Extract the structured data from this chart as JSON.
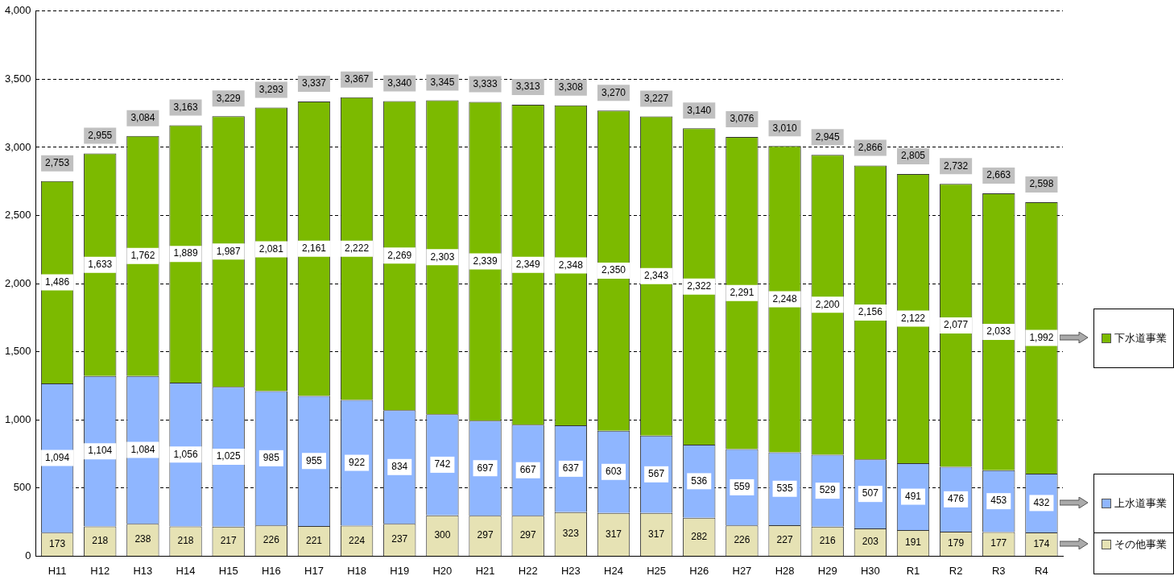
{
  "chart_data": {
    "type": "bar",
    "stacked": true,
    "categories": [
      "H11",
      "H12",
      "H13",
      "H14",
      "H15",
      "H16",
      "H17",
      "H18",
      "H19",
      "H20",
      "H21",
      "H22",
      "H23",
      "H24",
      "H25",
      "H26",
      "H27",
      "H28",
      "H29",
      "H30",
      "R1",
      "R2",
      "R3",
      "R4"
    ],
    "series": [
      {
        "name": "その他事業",
        "color": "#e6e2b4",
        "values": [
          173,
          218,
          238,
          218,
          217,
          226,
          221,
          224,
          237,
          300,
          297,
          297,
          323,
          317,
          317,
          282,
          226,
          227,
          216,
          203,
          191,
          179,
          177,
          174
        ]
      },
      {
        "name": "上水道事業",
        "color": "#8fb6ff",
        "values": [
          1094,
          1104,
          1084,
          1056,
          1025,
          985,
          955,
          922,
          834,
          742,
          697,
          667,
          637,
          603,
          567,
          536,
          559,
          535,
          529,
          507,
          491,
          476,
          453,
          432
        ],
        "value_labels": [
          "1,094",
          "1,104",
          "1,084",
          "1,056",
          "1,025",
          "985",
          "955",
          "922",
          "834",
          "742",
          "697",
          "667",
          "637",
          "603",
          "567",
          "536",
          "559",
          "535",
          "529",
          "507",
          "491",
          "476",
          "453",
          "432"
        ]
      },
      {
        "name": "下水道事業",
        "color": "#7cba00",
        "values": [
          1486,
          1633,
          1762,
          1889,
          1987,
          2081,
          2161,
          2222,
          2269,
          2303,
          2339,
          2349,
          2348,
          2350,
          2343,
          2322,
          2291,
          2248,
          2200,
          2156,
          2122,
          2077,
          2033,
          1992
        ],
        "value_labels": [
          "1,486",
          "1,633",
          "1,762",
          "1,889",
          "1,987",
          "2,081",
          "2,161",
          "2,222",
          "2,269",
          "2,303",
          "2,339",
          "2,349",
          "2,348",
          "2,350",
          "2,343",
          "2,322",
          "2,291",
          "2,248",
          "2,200",
          "2,156",
          "2,122",
          "2,077",
          "2,033",
          "1,992"
        ]
      }
    ],
    "totals": [
      "2,753",
      "2,955",
      "3,084",
      "3,163",
      "3,229",
      "3,293",
      "3,337",
      "3,367",
      "3,340",
      "3,345",
      "3,333",
      "3,313",
      "3,308",
      "3,270",
      "3,227",
      "3,140",
      "3,076",
      "3,010",
      "2,945",
      "2,866",
      "2,805",
      "2,732",
      "2,663",
      "2,598"
    ],
    "data_labels": true,
    "ylim": [
      0,
      4000
    ],
    "yticks": [
      {
        "value": 0,
        "label": "0"
      },
      {
        "value": 500,
        "label": "500"
      },
      {
        "value": 1000,
        "label": "1,000"
      },
      {
        "value": 1500,
        "label": "1,500"
      },
      {
        "value": 2000,
        "label": "2,000"
      },
      {
        "value": 2500,
        "label": "2,500"
      },
      {
        "value": 3000,
        "label": "3,000"
      },
      {
        "value": 3500,
        "label": "3,500"
      },
      {
        "value": 4000,
        "label": "4,000"
      }
    ],
    "grid": "y",
    "legend": "right"
  }
}
